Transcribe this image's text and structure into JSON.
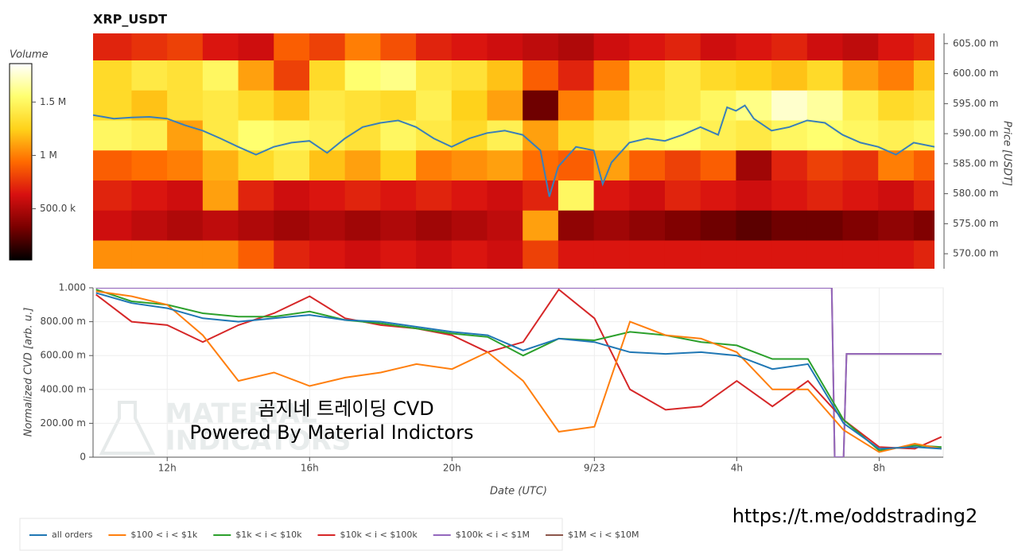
{
  "chart_data": [
    {
      "type": "heatmap",
      "title": "XRP_USDT",
      "y_label": "Price [USDT]",
      "xlim": [
        "9/22 09:55",
        "9/23 09:35"
      ],
      "ylim": [
        0.5675,
        0.6067
      ],
      "yticks": [
        {
          "value": 0.605,
          "label": "605.00 m"
        },
        {
          "value": 0.6,
          "label": "600.00 m"
        },
        {
          "value": 0.595,
          "label": "595.00 m"
        },
        {
          "value": 0.59,
          "label": "590.00 m"
        },
        {
          "value": 0.585,
          "label": "585.00 m"
        },
        {
          "value": 0.58,
          "label": "580.00 m"
        },
        {
          "value": 0.575,
          "label": "575.00 m"
        },
        {
          "value": 0.57,
          "label": "570.00 m"
        }
      ],
      "time_bins": [
        "9/22 09:55",
        "9/22 11:00",
        "9/22 12:00",
        "9/22 13:00",
        "9/22 14:00",
        "9/22 15:00",
        "9/22 16:00",
        "9/22 17:00",
        "9/22 18:00",
        "9/22 19:00",
        "9/22 20:00",
        "9/22 21:00",
        "9/22 22:00",
        "9/22 23:00",
        "9/23 00:00",
        "9/23 01:00",
        "9/23 02:00",
        "9/23 03:00",
        "9/23 04:00",
        "9/23 05:00",
        "9/23 06:00",
        "9/23 07:00",
        "9/23 08:00",
        "9/23 09:00",
        "9/23 09:35"
      ],
      "price_bins": [
        0.6067,
        0.6022,
        0.5972,
        0.5922,
        0.5872,
        0.5822,
        0.5772,
        0.5722,
        0.5675
      ],
      "volume": [
        [
          700000,
          750000,
          800000,
          650000,
          600000,
          900000,
          800000,
          1000000,
          850000,
          700000,
          650000,
          600000,
          550000,
          500000,
          600000,
          650000,
          700000,
          600000,
          650000,
          700000,
          600000,
          550000,
          650000,
          700000
        ],
        [
          1300000,
          1400000,
          1350000,
          1500000,
          1100000,
          800000,
          1300000,
          1550000,
          1600000,
          1400000,
          1350000,
          1200000,
          900000,
          700000,
          1000000,
          1300000,
          1400000,
          1300000,
          1250000,
          1200000,
          1300000,
          1100000,
          1000000,
          1200000
        ],
        [
          1300000,
          1200000,
          1350000,
          1400000,
          1300000,
          1200000,
          1400000,
          1350000,
          1300000,
          1450000,
          1250000,
          1100000,
          300000,
          1000000,
          1200000,
          1350000,
          1400000,
          1500000,
          1600000,
          1750000,
          1650000,
          1450000,
          1300000,
          1350000
        ],
        [
          1500000,
          1450000,
          1100000,
          1400000,
          1550000,
          1500000,
          1450000,
          1350000,
          1500000,
          1400000,
          1300000,
          1450000,
          1100000,
          1300000,
          1400000,
          1500000,
          1550000,
          1450000,
          1400000,
          1500000,
          1550000,
          1500000,
          1450000,
          1500000
        ],
        [
          900000,
          950000,
          1000000,
          1150000,
          1300000,
          1400000,
          1200000,
          1100000,
          1250000,
          1000000,
          1050000,
          1100000,
          950000,
          900000,
          1100000,
          900000,
          800000,
          900000,
          450000,
          700000,
          800000,
          750000,
          1000000,
          900000
        ],
        [
          700000,
          650000,
          600000,
          1100000,
          700000,
          600000,
          650000,
          700000,
          650000,
          700000,
          650000,
          600000,
          700000,
          1500000,
          650000,
          600000,
          700000,
          650000,
          600000,
          650000,
          700000,
          650000,
          600000,
          700000
        ],
        [
          600000,
          550000,
          500000,
          550000,
          500000,
          450000,
          500000,
          450000,
          500000,
          450000,
          500000,
          550000,
          1100000,
          400000,
          450000,
          400000,
          350000,
          300000,
          250000,
          300000,
          300000,
          350000,
          400000,
          350000
        ],
        [
          1050000,
          1050000,
          1050000,
          1050000,
          900000,
          700000,
          650000,
          600000,
          650000,
          600000,
          650000,
          600000,
          800000,
          650000,
          650000,
          650000,
          650000,
          650000,
          650000,
          650000,
          650000,
          650000,
          650000,
          700000
        ]
      ],
      "colorbar": {
        "title": "Volume",
        "clim": [
          20000,
          1860000
        ],
        "ticks": [
          {
            "value": 1500000,
            "label": "1.5 M"
          },
          {
            "value": 1000000,
            "label": "1 M"
          },
          {
            "value": 500000,
            "label": "500.0 k"
          }
        ],
        "colormap": [
          "#000000",
          "#7a0000",
          "#d81010",
          "#ff6a00",
          "#ffd21a",
          "#ffff70",
          "#ffffff"
        ]
      },
      "price_line": {
        "color": "#3a7fb8",
        "x": [
          "9/22 09:55",
          "9/22 10:30",
          "9/22 11:00",
          "9/22 11:30",
          "9/22 12:00",
          "9/22 12:30",
          "9/22 13:00",
          "9/22 13:30",
          "9/22 14:00",
          "9/22 14:30",
          "9/22 15:00",
          "9/22 15:30",
          "9/22 16:00",
          "9/22 16:30",
          "9/22 17:00",
          "9/22 17:30",
          "9/22 18:00",
          "9/22 18:30",
          "9/22 19:00",
          "9/22 19:30",
          "9/22 20:00",
          "9/22 20:30",
          "9/22 21:00",
          "9/22 21:30",
          "9/22 22:00",
          "9/22 22:30",
          "9/22 22:45",
          "9/22 23:00",
          "9/22 23:30",
          "9/23 00:00",
          "9/23 00:15",
          "9/23 00:30",
          "9/23 01:00",
          "9/23 01:30",
          "9/23 02:00",
          "9/23 02:30",
          "9/23 03:00",
          "9/23 03:30",
          "9/23 03:45",
          "9/23 04:00",
          "9/23 04:15",
          "9/23 04:30",
          "9/23 05:00",
          "9/23 05:30",
          "9/23 06:00",
          "9/23 06:30",
          "9/23 07:00",
          "9/23 07:30",
          "9/23 08:00",
          "9/23 08:30",
          "9/23 09:00",
          "9/23 09:35"
        ],
        "values": [
          0.5931,
          0.5925,
          0.5927,
          0.5928,
          0.5925,
          0.5914,
          0.5905,
          0.5892,
          0.5878,
          0.5865,
          0.5878,
          0.5885,
          0.5888,
          0.5868,
          0.5892,
          0.5911,
          0.5918,
          0.5922,
          0.5911,
          0.5892,
          0.5878,
          0.5892,
          0.5901,
          0.5905,
          0.5898,
          0.5872,
          0.5795,
          0.5845,
          0.5878,
          0.5872,
          0.5816,
          0.5852,
          0.5885,
          0.5892,
          0.5888,
          0.5898,
          0.5911,
          0.5898,
          0.5944,
          0.5938,
          0.5947,
          0.5925,
          0.5905,
          0.5911,
          0.5922,
          0.5918,
          0.5898,
          0.5885,
          0.5878,
          0.5865,
          0.5885,
          0.5878
        ]
      }
    },
    {
      "type": "line",
      "y_label": "Normalized CVD [arb. u.]",
      "x_label": "Date (UTC)",
      "xlim": [
        "9/22 09:55",
        "9/23 09:48"
      ],
      "xticks": [
        {
          "value": "9/22 12:00",
          "label": "12h"
        },
        {
          "value": "9/22 16:00",
          "label": "16h"
        },
        {
          "value": "9/22 20:00",
          "label": "20h"
        },
        {
          "value": "9/23 00:00",
          "label": "9/23"
        },
        {
          "value": "9/23 04:00",
          "label": "4h"
        },
        {
          "value": "9/23 08:00",
          "label": "8h"
        }
      ],
      "ylim": [
        0,
        1
      ],
      "yticks": [
        0,
        {
          "value": 0.2,
          "label": "200.00 m"
        },
        {
          "value": 0.4,
          "label": "400.00 m"
        },
        {
          "value": 0.6,
          "label": "600.00 m"
        },
        {
          "value": 0.8,
          "label": "800.00 m"
        },
        {
          "value": 1,
          "label": "1.000"
        }
      ],
      "grid": true,
      "legend": "bottom-left",
      "x": [
        "9/22 10:00",
        "9/22 11:00",
        "9/22 12:00",
        "9/22 13:00",
        "9/22 14:00",
        "9/22 15:00",
        "9/22 16:00",
        "9/22 17:00",
        "9/22 18:00",
        "9/22 19:00",
        "9/22 20:00",
        "9/22 21:00",
        "9/22 22:00",
        "9/22 23:00",
        "9/23 00:00",
        "9/23 01:00",
        "9/23 02:00",
        "9/23 03:00",
        "9/23 04:00",
        "9/23 05:00",
        "9/23 06:00",
        "9/23 07:00",
        "9/23 08:00",
        "9/23 09:00",
        "9/23 09:45"
      ],
      "series": [
        {
          "name": "all orders",
          "color": "#1f77b4",
          "values": [
            0.97,
            0.91,
            0.88,
            0.82,
            0.8,
            0.82,
            0.84,
            0.81,
            0.8,
            0.77,
            0.74,
            0.72,
            0.63,
            0.7,
            0.68,
            0.62,
            0.61,
            0.62,
            0.6,
            0.52,
            0.55,
            0.2,
            0.05,
            0.06,
            0.05
          ]
        },
        {
          "name": "$100 < i < $1k",
          "color": "#ff7f0e",
          "values": [
            0.98,
            0.95,
            0.9,
            0.72,
            0.45,
            0.5,
            0.42,
            0.47,
            0.5,
            0.55,
            0.52,
            0.62,
            0.45,
            0.15,
            0.18,
            0.8,
            0.72,
            0.7,
            0.62,
            0.4,
            0.4,
            0.16,
            0.03,
            0.08,
            0.05
          ]
        },
        {
          "name": "$1k < i < $10k",
          "color": "#2ca02c",
          "values": [
            0.99,
            0.92,
            0.9,
            0.85,
            0.83,
            0.83,
            0.86,
            0.81,
            0.79,
            0.76,
            0.73,
            0.71,
            0.6,
            0.7,
            0.69,
            0.74,
            0.72,
            0.68,
            0.66,
            0.58,
            0.58,
            0.22,
            0.04,
            0.07,
            0.06
          ]
        },
        {
          "name": "$10k < i < $100k",
          "color": "#d62728",
          "values": [
            0.96,
            0.8,
            0.78,
            0.68,
            0.78,
            0.85,
            0.95,
            0.82,
            0.78,
            0.76,
            0.72,
            0.62,
            0.68,
            0.99,
            0.82,
            0.4,
            0.28,
            0.3,
            0.45,
            0.3,
            0.45,
            0.22,
            0.06,
            0.05,
            0.12
          ]
        },
        {
          "name": "$100k < i < $1M",
          "color": "#9467bd",
          "x": [
            "9/22 10:00",
            "9/23 06:40",
            "9/23 06:45",
            "9/23 07:00",
            "9/23 07:05",
            "9/23 09:45"
          ],
          "values": [
            1,
            1,
            0,
            0,
            0.61,
            0.61
          ]
        },
        {
          "name": "$1M < i < $10M",
          "color": "#8c564b",
          "x": [
            "9/22 10:00",
            "9/23 06:40",
            "9/23 06:45",
            "9/23 07:00",
            "9/23 07:05",
            "9/23 09:45"
          ],
          "values": [
            1,
            1,
            0,
            0,
            0.61,
            0.61
          ]
        }
      ],
      "watermark": [
        "MATERIAL",
        "INDICATORS"
      ]
    }
  ],
  "overlay": {
    "line1": "곰지네 트레이딩 CVD",
    "line2": "Powered By Material Indictors",
    "link": "https://t.me/oddstrading2"
  }
}
